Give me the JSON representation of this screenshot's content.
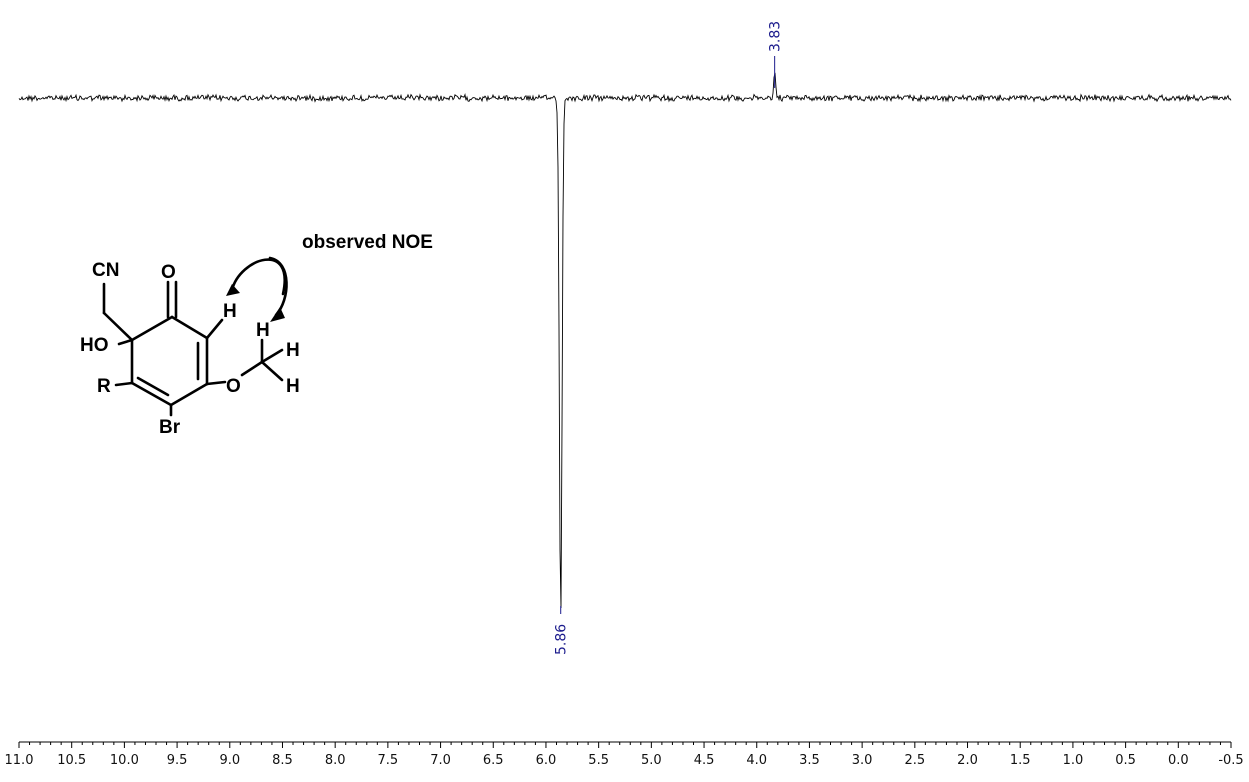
{
  "chart_data": {
    "type": "line",
    "title": "",
    "xlabel": "",
    "ylabel": "",
    "x_axis_reversed": true,
    "xlim": [
      11.0,
      -0.5
    ],
    "x_ticks": [
      "11.0",
      "10.5",
      "10.0",
      "9.5",
      "9.0",
      "8.5",
      "8.0",
      "7.5",
      "7.0",
      "6.5",
      "6.0",
      "5.5",
      "5.0",
      "4.5",
      "4.0",
      "3.5",
      "3.0",
      "2.5",
      "2.0",
      "1.5",
      "1.0",
      "0.5",
      "0.0",
      "-0.5"
    ],
    "peaks": [
      {
        "ppm": 3.83,
        "label": "3.83",
        "direction": "positive",
        "relative_intensity": 0.05
      },
      {
        "ppm": 5.86,
        "label": "5.86",
        "direction": "negative",
        "relative_intensity": -1.0
      }
    ],
    "grid": false,
    "line_color": "#000000",
    "label_color": "#1a1a8c"
  },
  "annotation": {
    "text": "observed NOE"
  },
  "structure": {
    "atoms": {
      "cn": "CN",
      "carbonyl_o": "O",
      "ho": "HO",
      "r": "R",
      "br": "Br",
      "ether_o": "O",
      "vinyl_h": "H",
      "methyl_h1": "H",
      "methyl_h2": "H",
      "methyl_h3": "H"
    }
  }
}
